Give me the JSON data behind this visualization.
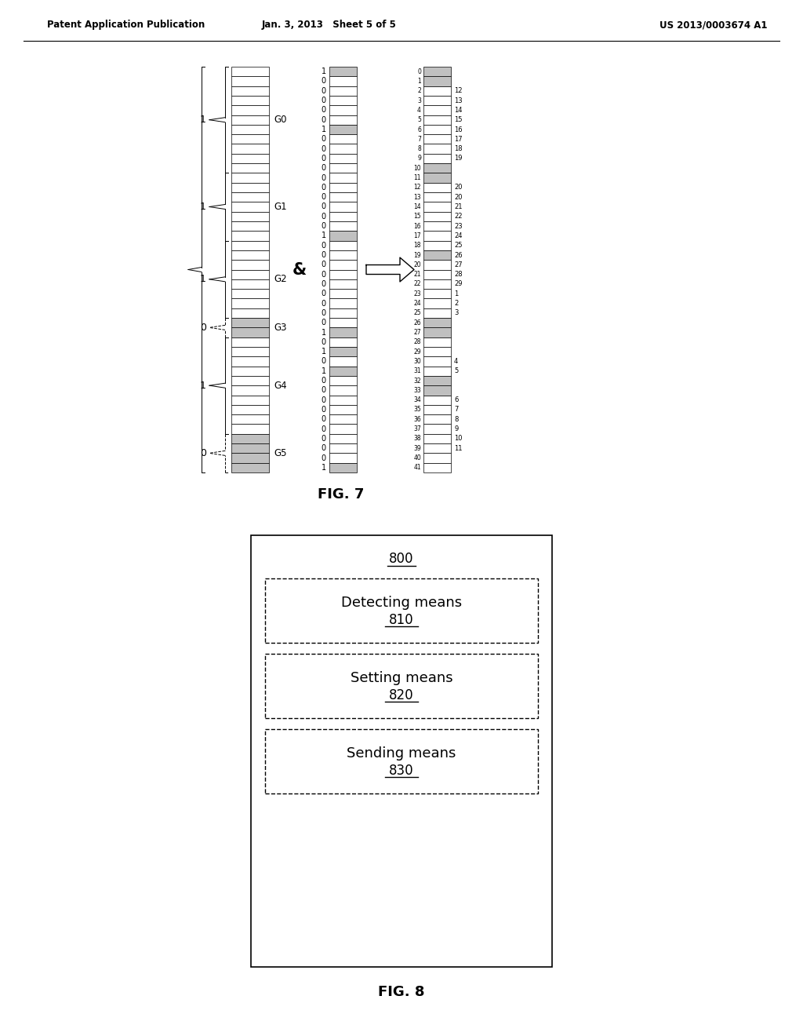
{
  "header_left": "Patent Application Publication",
  "header_mid": "Jan. 3, 2013   Sheet 5 of 5",
  "header_right": "US 2013/0003674 A1",
  "fig7_label": "FIG. 7",
  "fig8_label": "FIG. 8",
  "col1_groups": [
    {
      "label": "G0",
      "value": "1",
      "start": 0,
      "end": 11,
      "shaded": false
    },
    {
      "label": "G1",
      "value": "1",
      "start": 11,
      "end": 18,
      "shaded": false
    },
    {
      "label": "G2",
      "value": "1",
      "start": 18,
      "end": 26,
      "shaded": false
    },
    {
      "label": "G3",
      "value": "0",
      "start": 26,
      "end": 28,
      "shaded": true
    },
    {
      "label": "G4",
      "value": "1",
      "start": 28,
      "end": 38,
      "shaded": false
    },
    {
      "label": "G5",
      "value": "0",
      "start": 38,
      "end": 42,
      "shaded": true
    }
  ],
  "col2_bits": [
    1,
    0,
    0,
    0,
    0,
    0,
    1,
    0,
    0,
    0,
    0,
    0,
    0,
    0,
    0,
    0,
    0,
    1,
    0,
    0,
    0,
    0,
    0,
    0,
    0,
    0,
    0,
    1,
    0,
    1,
    0,
    1,
    0,
    0,
    0,
    0,
    0,
    0,
    0,
    0,
    0,
    1
  ],
  "col3_shaded_rows": [
    0,
    1,
    10,
    11,
    19,
    26,
    27,
    32,
    33
  ],
  "col3_right_labels": {
    "2": "12",
    "3": "13",
    "4": "14",
    "5": "15",
    "6": "16",
    "7": "17",
    "8": "18",
    "9": "19",
    "12": "20",
    "13": "20",
    "14": "21",
    "15": "22",
    "16": "23",
    "17": "24",
    "18": "25",
    "19": "26",
    "20": "27",
    "21": "28",
    "22": "29",
    "23": "1",
    "24": "2",
    "25": "3",
    "30": "4",
    "31": "5",
    "34": "6",
    "35": "7",
    "36": "8",
    "37": "9",
    "38": "10",
    "39": "11"
  },
  "fig8_title": "800",
  "fig8_boxes": [
    {
      "label": "Detecting means",
      "sublabel": "810"
    },
    {
      "label": "Setting means",
      "sublabel": "820"
    },
    {
      "label": "Sending means",
      "sublabel": "830"
    }
  ],
  "bg_color": "#ffffff",
  "text_color": "#000000",
  "shaded_color": "#c0c0c0",
  "line_color": "#000000"
}
